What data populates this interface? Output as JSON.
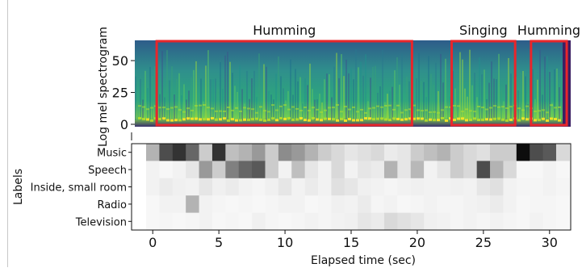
{
  "chart_data": [
    {
      "type": "heatmap",
      "title": "",
      "ylabel": "Log mel spectrogram",
      "xlabel": "",
      "yticks": [
        0,
        25,
        50
      ],
      "ylim": [
        0,
        64
      ],
      "xlim": [
        -1.6,
        31.6
      ],
      "colormap": "viridis",
      "annotations": [
        {
          "label": "Humming",
          "x_start": 0.3,
          "x_end": 19.6
        },
        {
          "label": "Singing",
          "x_start": 22.6,
          "x_end": 27.4
        },
        {
          "label": "Humming",
          "x_start": 28.6,
          "x_end": 31.3
        }
      ],
      "box_color": "#e8262b"
    },
    {
      "type": "heatmap",
      "title": "",
      "ylabel": "Labels",
      "xlabel": "Elapsed time (sec)",
      "xticks": [
        0,
        5,
        10,
        15,
        20,
        25,
        30
      ],
      "xlim": [
        -1.6,
        31.6
      ],
      "rows": [
        "Music",
        "Speech",
        "Inside, small room",
        "Radio",
        "Television"
      ],
      "colormap": "greys",
      "x_start": -0.5,
      "step": 1,
      "values": [
        [
          0.3,
          0.7,
          0.8,
          0.6,
          0.2,
          0.8,
          0.25,
          0.3,
          0.4,
          0.2,
          0.45,
          0.4,
          0.3,
          0.2,
          0.15,
          0.1,
          0.12,
          0.15,
          0.08,
          0.1,
          0.2,
          0.25,
          0.3,
          0.2,
          0.15,
          0.12,
          0.2,
          0.2,
          0.95,
          0.7,
          0.65,
          0.15
        ],
        [
          0.05,
          0.03,
          0.05,
          0.1,
          0.4,
          0.2,
          0.5,
          0.6,
          0.65,
          0.2,
          0.05,
          0.25,
          0.1,
          0.05,
          0.15,
          0.05,
          0.1,
          0.08,
          0.3,
          0.1,
          0.28,
          0.05,
          0.1,
          0.2,
          0.15,
          0.7,
          0.3,
          0.15,
          0.03,
          0.03,
          0.05,
          0.03
        ],
        [
          0.05,
          0.08,
          0.06,
          0.05,
          0.1,
          0.06,
          0.08,
          0.05,
          0.04,
          0.06,
          0.1,
          0.05,
          0.08,
          0.05,
          0.12,
          0.1,
          0.06,
          0.05,
          0.04,
          0.05,
          0.06,
          0.05,
          0.05,
          0.06,
          0.05,
          0.1,
          0.12,
          0.05,
          0.04,
          0.04,
          0.05,
          0.04
        ],
        [
          0.03,
          0.05,
          0.05,
          0.3,
          0.05,
          0.04,
          0.03,
          0.04,
          0.03,
          0.04,
          0.05,
          0.05,
          0.03,
          0.04,
          0.06,
          0.05,
          0.08,
          0.04,
          0.05,
          0.03,
          0.04,
          0.05,
          0.04,
          0.04,
          0.05,
          0.06,
          0.08,
          0.05,
          0.03,
          0.04,
          0.04,
          0.03
        ],
        [
          0.03,
          0.04,
          0.03,
          0.04,
          0.05,
          0.03,
          0.04,
          0.03,
          0.06,
          0.04,
          0.03,
          0.04,
          0.05,
          0.04,
          0.05,
          0.06,
          0.1,
          0.08,
          0.15,
          0.12,
          0.1,
          0.06,
          0.05,
          0.04,
          0.05,
          0.04,
          0.05,
          0.04,
          0.03,
          0.05,
          0.04,
          0.03
        ]
      ]
    }
  ]
}
